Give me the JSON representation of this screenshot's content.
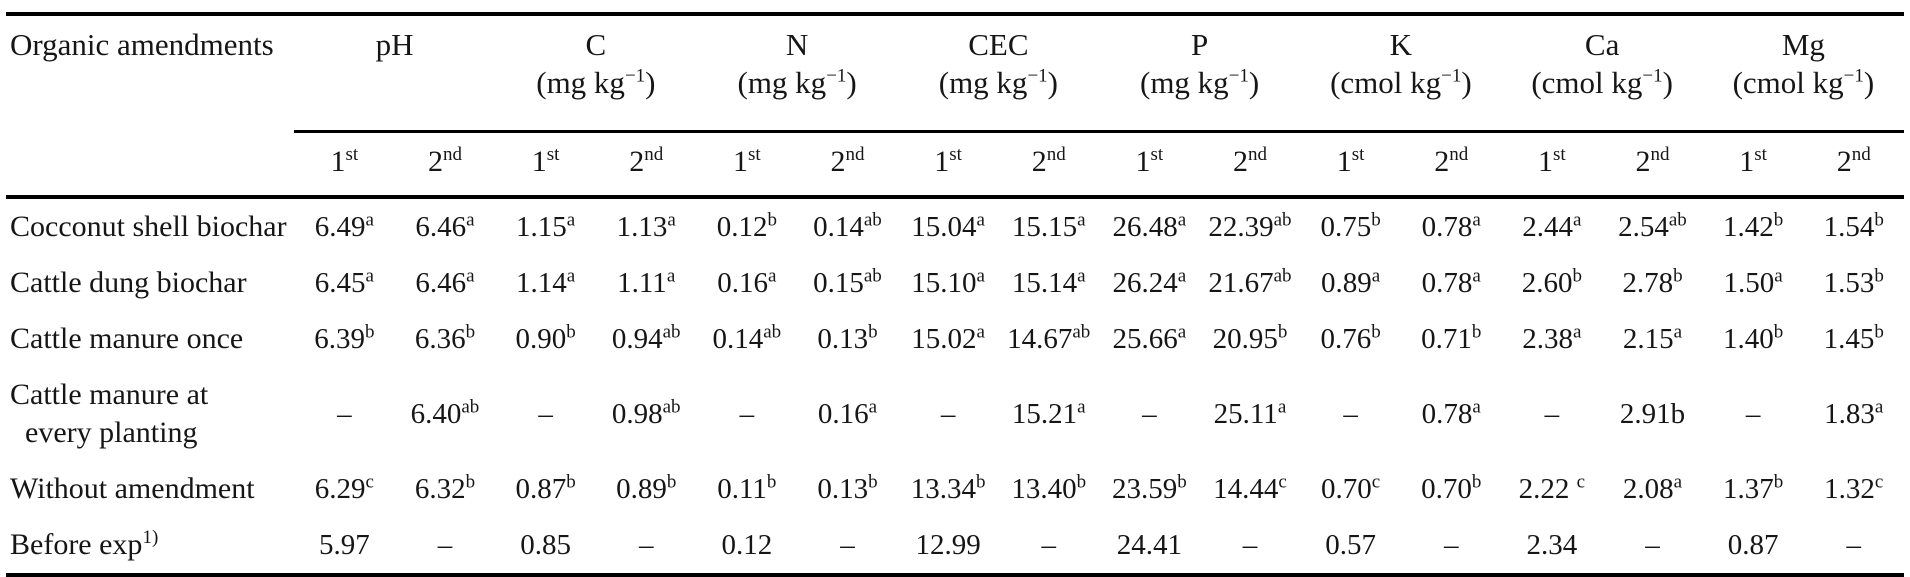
{
  "table": {
    "corner_label": "Organic amendments",
    "groups": [
      {
        "name": "pH",
        "unit_pre": "",
        "unit_sup": "",
        "unit_post": ""
      },
      {
        "name": "C",
        "unit_pre": "(mg kg",
        "unit_sup": "−1",
        "unit_post": ")"
      },
      {
        "name": "N",
        "unit_pre": "(mg kg",
        "unit_sup": "−1",
        "unit_post": ")"
      },
      {
        "name": "CEC",
        "unit_pre": "(mg kg",
        "unit_sup": "−1",
        "unit_post": ")"
      },
      {
        "name": "P",
        "unit_pre": "(mg kg",
        "unit_sup": "−1",
        "unit_post": ")"
      },
      {
        "name": "K",
        "unit_pre": "(cmol kg",
        "unit_sup": "−1",
        "unit_post": ")"
      },
      {
        "name": "Ca",
        "unit_pre": "(cmol kg",
        "unit_sup": "−1",
        "unit_post": ")"
      },
      {
        "name": "Mg",
        "unit_pre": "(cmol kg",
        "unit_sup": "−1",
        "unit_post": ")"
      }
    ],
    "subheader": {
      "first": {
        "v": "1",
        "s": "st"
      },
      "second": {
        "v": "2",
        "s": "nd"
      }
    },
    "rows": [
      {
        "label": "Cocconut shell biochar",
        "cells": [
          {
            "v": "6.49",
            "s": "a"
          },
          {
            "v": "6.46",
            "s": "a"
          },
          {
            "v": "1.15",
            "s": "a"
          },
          {
            "v": "1.13",
            "s": "a"
          },
          {
            "v": "0.12",
            "s": "b"
          },
          {
            "v": "0.14",
            "s": "ab"
          },
          {
            "v": "15.04",
            "s": "a"
          },
          {
            "v": "15.15",
            "s": "a"
          },
          {
            "v": "26.48",
            "s": "a"
          },
          {
            "v": "22.39",
            "s": "ab"
          },
          {
            "v": "0.75",
            "s": "b"
          },
          {
            "v": "0.78",
            "s": "a"
          },
          {
            "v": "2.44",
            "s": "a"
          },
          {
            "v": "2.54",
            "s": "ab"
          },
          {
            "v": "1.42",
            "s": "b"
          },
          {
            "v": "1.54",
            "s": "b"
          }
        ]
      },
      {
        "label": "Cattle dung biochar",
        "cells": [
          {
            "v": "6.45",
            "s": "a"
          },
          {
            "v": "6.46",
            "s": "a"
          },
          {
            "v": "1.14",
            "s": "a"
          },
          {
            "v": "1.11",
            "s": "a"
          },
          {
            "v": "0.16",
            "s": "a"
          },
          {
            "v": "0.15",
            "s": "ab"
          },
          {
            "v": "15.10",
            "s": "a"
          },
          {
            "v": "15.14",
            "s": "a"
          },
          {
            "v": "26.24",
            "s": "a"
          },
          {
            "v": "21.67",
            "s": "ab"
          },
          {
            "v": "0.89",
            "s": "a"
          },
          {
            "v": "0.78",
            "s": "a"
          },
          {
            "v": "2.60",
            "s": "b"
          },
          {
            "v": "2.78",
            "s": "b"
          },
          {
            "v": "1.50",
            "s": "a"
          },
          {
            "v": "1.53",
            "s": "b"
          }
        ]
      },
      {
        "label": "Cattle manure once",
        "cells": [
          {
            "v": "6.39",
            "s": "b"
          },
          {
            "v": "6.36",
            "s": "b"
          },
          {
            "v": "0.90",
            "s": "b"
          },
          {
            "v": "0.94",
            "s": "ab"
          },
          {
            "v": "0.14",
            "s": "ab"
          },
          {
            "v": "0.13",
            "s": "b"
          },
          {
            "v": "15.02",
            "s": "a"
          },
          {
            "v": "14.67",
            "s": "ab"
          },
          {
            "v": "25.66",
            "s": "a"
          },
          {
            "v": "20.95",
            "s": "b"
          },
          {
            "v": "0.76",
            "s": "b"
          },
          {
            "v": "0.71",
            "s": "b"
          },
          {
            "v": "2.38",
            "s": "a"
          },
          {
            "v": "2.15",
            "s": "a"
          },
          {
            "v": "1.40",
            "s": "b"
          },
          {
            "v": "1.45",
            "s": "b"
          }
        ]
      },
      {
        "label": "Cattle manure at\n  every planting",
        "cells": [
          {
            "v": "–"
          },
          {
            "v": "6.40",
            "s": "ab"
          },
          {
            "v": "–"
          },
          {
            "v": "0.98",
            "s": "ab"
          },
          {
            "v": "–"
          },
          {
            "v": "0.16",
            "s": "a"
          },
          {
            "v": "–"
          },
          {
            "v": "15.21",
            "s": "a"
          },
          {
            "v": "–"
          },
          {
            "v": "25.11",
            "s": "a"
          },
          {
            "v": "–"
          },
          {
            "v": "0.78",
            "s": "a"
          },
          {
            "v": "–"
          },
          {
            "v": "2.91b"
          },
          {
            "v": "–"
          },
          {
            "v": "1.83",
            "s": "a"
          }
        ]
      },
      {
        "label": "Without amendment",
        "cells": [
          {
            "v": "6.29",
            "s": "c"
          },
          {
            "v": "6.32",
            "s": "b"
          },
          {
            "v": "0.87",
            "s": "b"
          },
          {
            "v": "0.89",
            "s": "b"
          },
          {
            "v": "0.11",
            "s": "b"
          },
          {
            "v": "0.13",
            "s": "b"
          },
          {
            "v": "13.34",
            "s": "b"
          },
          {
            "v": "13.40",
            "s": "b"
          },
          {
            "v": "23.59",
            "s": "b"
          },
          {
            "v": "14.44",
            "s": "c"
          },
          {
            "v": "0.70",
            "s": "c"
          },
          {
            "v": "0.70",
            "s": "b"
          },
          {
            "v": "2.22 ",
            "s": "c"
          },
          {
            "v": "2.08",
            "s": "a"
          },
          {
            "v": "1.37",
            "s": "b"
          },
          {
            "v": "1.32",
            "s": "c"
          }
        ]
      },
      {
        "label": "Before exp",
        "label_sup": "1)",
        "cells": [
          {
            "v": "5.97"
          },
          {
            "v": "–"
          },
          {
            "v": "0.85"
          },
          {
            "v": "–"
          },
          {
            "v": "0.12"
          },
          {
            "v": "–"
          },
          {
            "v": "12.99"
          },
          {
            "v": "–"
          },
          {
            "v": "24.41"
          },
          {
            "v": "–"
          },
          {
            "v": "0.57"
          },
          {
            "v": "–"
          },
          {
            "v": "2.34"
          },
          {
            "v": "–"
          },
          {
            "v": "0.87"
          },
          {
            "v": "–"
          }
        ]
      }
    ]
  },
  "colors": {
    "background": "#ffffff",
    "text": "#161616",
    "rule": "#000000"
  }
}
